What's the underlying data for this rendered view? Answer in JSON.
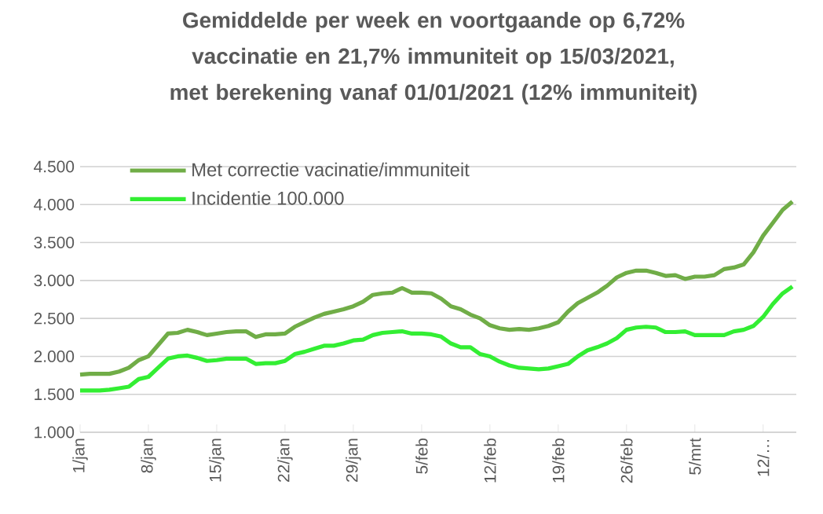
{
  "chart_data": {
    "type": "line",
    "title": "Gemiddelde per week  en voortgaande op 6,72% vaccinatie en  21,7% immuniteit op 15/03/2021, met berekening vanaf 01/01/2021  (12% immuniteit)",
    "categories": [
      "1/jan",
      null,
      null,
      null,
      null,
      null,
      null,
      "8/jan",
      null,
      null,
      null,
      null,
      null,
      null,
      "15/jan",
      null,
      null,
      null,
      null,
      null,
      null,
      "22/jan",
      null,
      null,
      null,
      null,
      null,
      null,
      "29/jan",
      null,
      null,
      null,
      null,
      null,
      null,
      "5/feb",
      null,
      null,
      null,
      null,
      null,
      null,
      "12/feb",
      null,
      null,
      null,
      null,
      null,
      null,
      "19/feb",
      null,
      null,
      null,
      null,
      null,
      null,
      "26/feb",
      null,
      null,
      null,
      null,
      null,
      null,
      "5/mrt",
      null,
      null,
      null,
      null,
      null,
      null,
      "12/…",
      null,
      null,
      null
    ],
    "series": [
      {
        "name": "Met correctie vacinatie/immuniteit",
        "color": "#70ad47",
        "values": [
          1760,
          1770,
          1770,
          1770,
          1800,
          1850,
          1950,
          2000,
          2150,
          2300,
          2310,
          2350,
          2320,
          2280,
          2300,
          2320,
          2330,
          2330,
          2255,
          2290,
          2290,
          2300,
          2390,
          2450,
          2510,
          2560,
          2590,
          2620,
          2660,
          2720,
          2810,
          2830,
          2840,
          2900,
          2840,
          2840,
          2830,
          2760,
          2660,
          2620,
          2550,
          2500,
          2410,
          2370,
          2350,
          2360,
          2350,
          2370,
          2400,
          2450,
          2590,
          2700,
          2770,
          2840,
          2930,
          3040,
          3100,
          3130,
          3130,
          3100,
          3060,
          3070,
          3020,
          3050,
          3050,
          3070,
          3150,
          3170,
          3210,
          3370,
          3590,
          3760,
          3930,
          4040
        ]
      },
      {
        "name": "Incidentie 100.000",
        "color": "#33ee33",
        "values": [
          1550,
          1550,
          1550,
          1560,
          1580,
          1600,
          1700,
          1730,
          1850,
          1970,
          2000,
          2010,
          1980,
          1940,
          1950,
          1970,
          1970,
          1970,
          1900,
          1910,
          1910,
          1940,
          2030,
          2060,
          2100,
          2140,
          2140,
          2170,
          2210,
          2220,
          2280,
          2310,
          2320,
          2330,
          2300,
          2300,
          2290,
          2260,
          2170,
          2120,
          2120,
          2030,
          2000,
          1930,
          1880,
          1850,
          1840,
          1830,
          1840,
          1870,
          1900,
          2000,
          2080,
          2120,
          2170,
          2240,
          2350,
          2380,
          2390,
          2380,
          2320,
          2320,
          2330,
          2280,
          2280,
          2280,
          2280,
          2330,
          2350,
          2400,
          2520,
          2690,
          2830,
          2920
        ]
      }
    ],
    "ylim": [
      1000,
      4500
    ],
    "yticks": [
      {
        "value": 1000,
        "label": "1.000"
      },
      {
        "value": 1500,
        "label": "1.500"
      },
      {
        "value": 2000,
        "label": "2.000"
      },
      {
        "value": 2500,
        "label": "2.500"
      },
      {
        "value": 3000,
        "label": "3.000"
      },
      {
        "value": 3500,
        "label": "3.500"
      },
      {
        "value": 4000,
        "label": "4.000"
      },
      {
        "value": 4500,
        "label": "4.500"
      }
    ],
    "grid": "y",
    "legend": "top left"
  }
}
